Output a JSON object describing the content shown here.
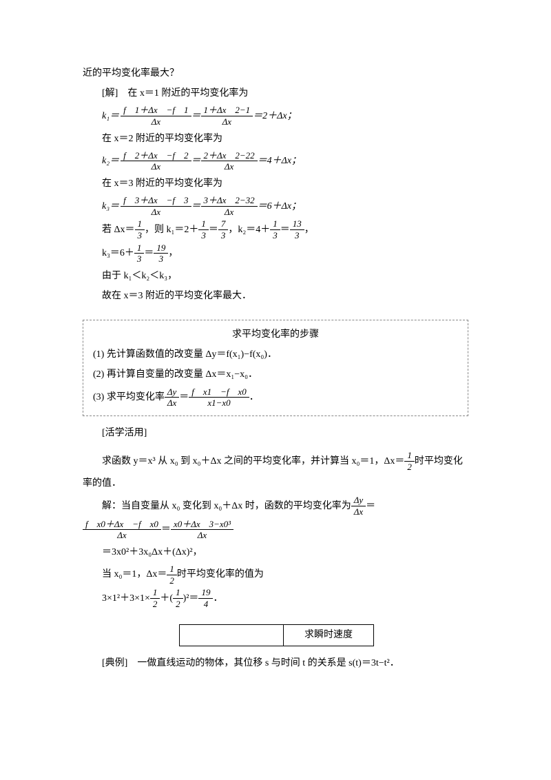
{
  "doc": {
    "l1": "近的平均变化率最大？",
    "l2": "[解]　在 x＝1 附近的平均变化率为",
    "k1_lhs": "k₁＝",
    "k1_frac1_num": "f　1＋Δx　−f　1",
    "k1_frac1_den": "Δx",
    "k1_eq": "＝",
    "k1_frac2_num": "1＋Δx　2−1",
    "k1_frac2_den": "Δx",
    "k1_tail": "＝2＋Δx；",
    "l3": "在 x＝2 附近的平均变化率为",
    "k2_lhs": "k₂＝",
    "k2_frac1_num": "f　2＋Δx　−f　2",
    "k2_frac1_den": "Δx",
    "k2_frac2_num": "2＋Δx　2−22",
    "k2_frac2_den": "Δx",
    "k2_tail": "＝4＋Δx；",
    "l4": "在 x＝3 附近的平均变化率为",
    "k3_lhs": "k₃＝",
    "k3_frac1_num": "f　3＋Δx　−f　3",
    "k3_frac1_den": "Δx",
    "k3_frac2_num": "3＋Δx　2−32",
    "k3_frac2_den": "Δx",
    "k3_tail": "＝6＋Δx；",
    "if_pre": "若 Δx＝",
    "if_frac_num": "1",
    "if_frac_den": "3",
    "if_mid1": "，则 k₁＝2＋",
    "if_f2_num": "1",
    "if_f2_den": "3",
    "if_eq1": "＝",
    "if_f3_num": "7",
    "if_f3_den": "3",
    "if_mid2": "，k₂＝4＋",
    "if_f4_num": "1",
    "if_f4_den": "3",
    "if_eq2": "＝",
    "if_f5_num": "13",
    "if_f5_den": "3",
    "if_tail": "，",
    "k3v_pre": "k₃＝6＋",
    "k3v_f1_num": "1",
    "k3v_f1_den": "3",
    "k3v_eq": "＝",
    "k3v_f2_num": "19",
    "k3v_f2_den": "3",
    "k3v_tail": "，",
    "since": "由于 k₁＜k₂＜k₃，",
    "conclude": "故在 x＝3 附近的平均变化率最大．",
    "box_title": "求平均变化率的步骤",
    "box_1": "(1) 先计算函数值的改变量 Δy＝f(x₁)−f(x₀)．",
    "box_2": "(2) 再计算自变量的改变量 Δx＝x₁−x₀．",
    "box_3_pre": "(3) 求平均变化率",
    "box_3_f1_num": "Δy",
    "box_3_f1_den": "Δx",
    "box_3_eq": "＝",
    "box_3_f2_num": "f　x1　−f　x0",
    "box_3_f2_den": "x1−x0",
    "box_3_tail": "．",
    "practice": "[活学活用]",
    "q_pre": "求函数 y＝x³ 从 x₀ 到 x₀＋Δx 之间的平均变化率，并计算当 x₀＝1，Δx＝",
    "q_frac_num": "1",
    "q_frac_den": "2",
    "q_tail": "时平均变化",
    "q_tail2": "率的值．",
    "a_pre": "解：当自变量从 x₀ 变化到 x₀＋Δx 时，函数的平均变化率为",
    "a_f1_num": "Δy",
    "a_f1_den": "Δx",
    "a_eq1": "＝",
    "a_f2_num": "f　x0＋Δx　−f　x0",
    "a_f2_den": "Δx",
    "a_eq2": "＝",
    "a_f3_num": "x0＋Δx　3−x0³",
    "a_f3_den": "Δx",
    "a_line2": "＝3x0²＋3x₀Δx＋(Δx)²，",
    "a2_pre": "当 x₀＝1，Δx＝",
    "a2_f_num": "1",
    "a2_f_den": "2",
    "a2_tail": "时平均变化率的值为",
    "a3_pre": "3×1²＋3×1×",
    "a3_f1_num": "1",
    "a3_f1_den": "2",
    "a3_plus": "＋",
    "a3_f2_num": "1",
    "a3_f2_den": "2",
    "a3_sq": "²＝",
    "a3_f3_num": "19",
    "a3_f3_den": "4",
    "a3_tail": "．",
    "box2_left": "",
    "box2_right": "求瞬时速度",
    "ex2": "[典例]　一做直线运动的物体，其位移 s 与时间 t 的关系是 s(t)＝3t−t²．"
  },
  "style": {
    "page_bg": "#ffffff",
    "text_color": "#000000",
    "font_size": 14,
    "dashed_border": "#888888"
  }
}
